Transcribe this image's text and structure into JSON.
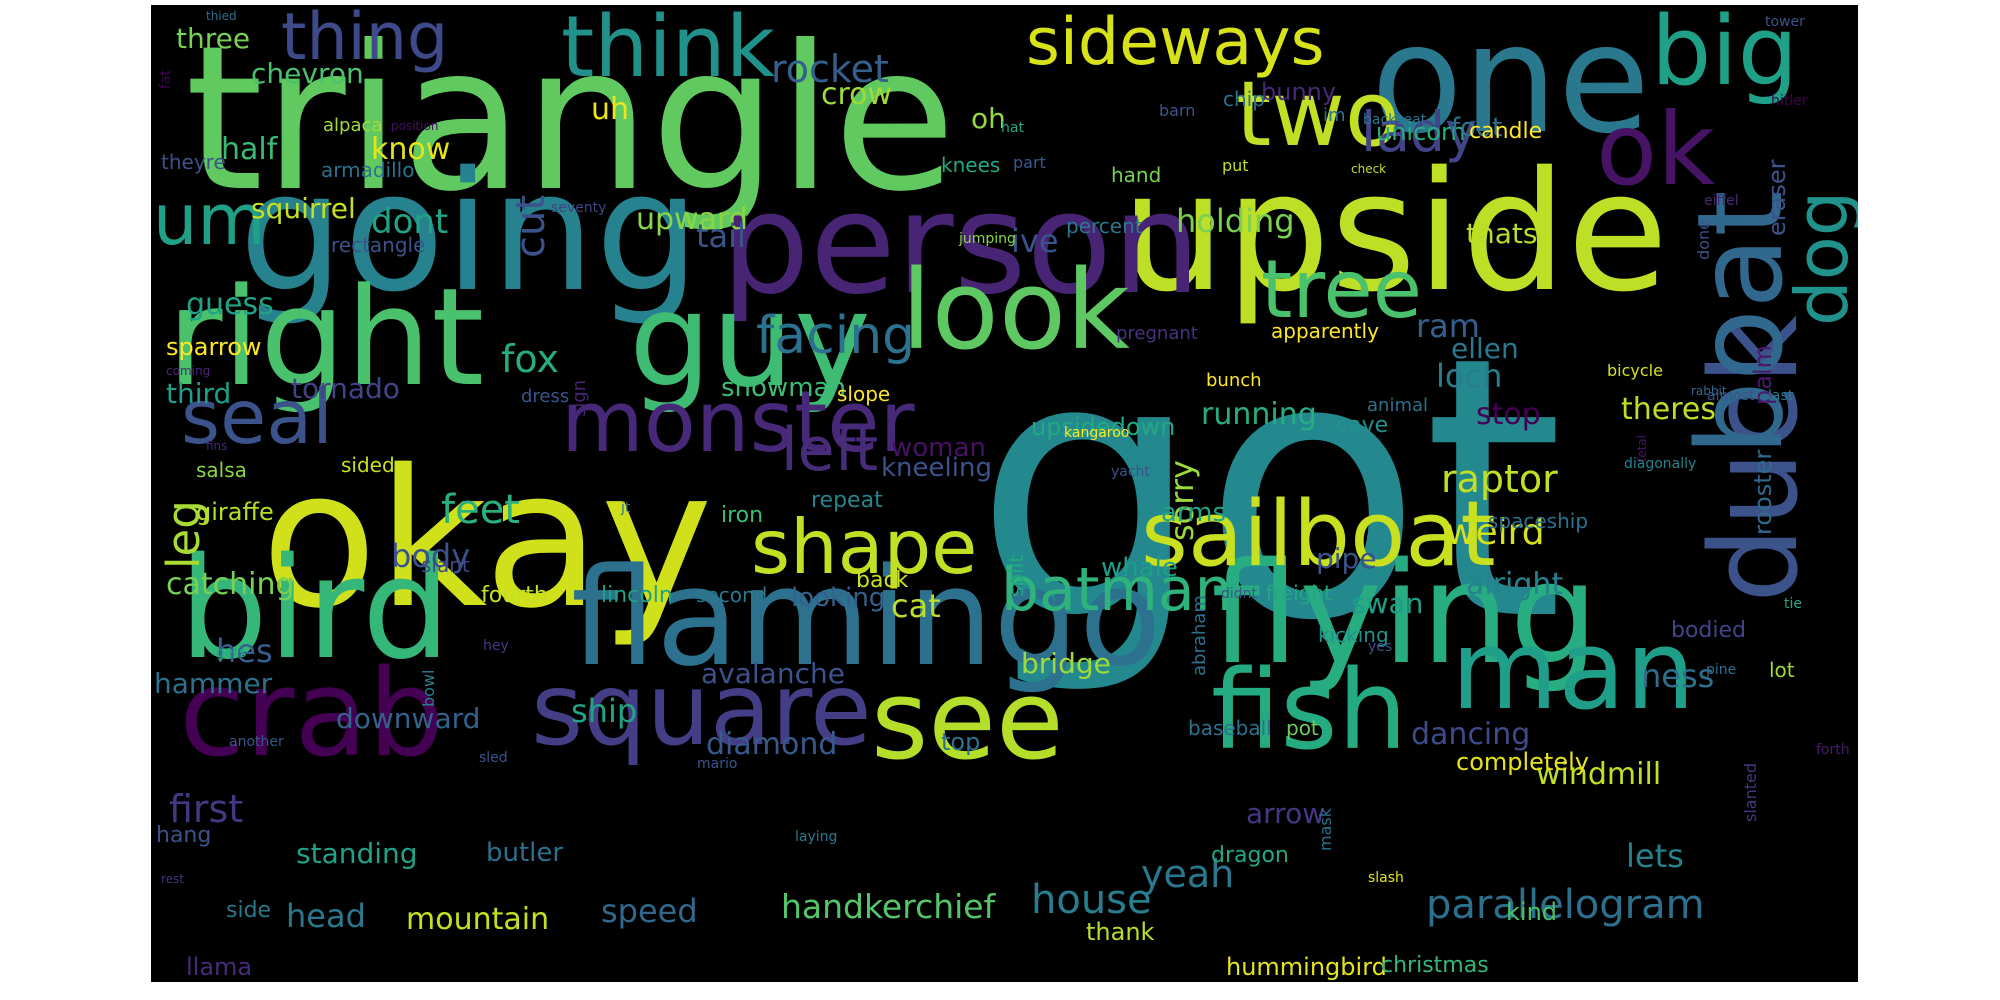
{
  "words": [
    {
      "text": "got",
      "color": "#23898e",
      "weight": 1.0
    },
    {
      "text": "triangle",
      "color": "#60ca60",
      "weight": 0.62
    },
    {
      "text": "okay",
      "color": "#d0e11c",
      "weight": 0.55
    },
    {
      "text": "going",
      "color": "#26828e",
      "weight": 0.5
    },
    {
      "text": "upside",
      "color": "#bddf26",
      "weight": 0.5
    },
    {
      "text": "one",
      "color": "#2a788e",
      "weight": 0.48
    },
    {
      "text": "person",
      "color": "#482475",
      "weight": 0.45
    },
    {
      "text": "flamingo",
      "color": "#2c728e",
      "weight": 0.45
    },
    {
      "text": "flying",
      "color": "#27ad81",
      "weight": 0.45
    },
    {
      "text": "bird",
      "color": "#35b779",
      "weight": 0.42
    },
    {
      "text": "right",
      "color": "#4ac16d",
      "weight": 0.42
    },
    {
      "text": "guy",
      "color": "#3fbc73",
      "weight": 0.42
    },
    {
      "text": "crab",
      "color": "#440154",
      "weight": 0.4
    },
    {
      "text": "duck",
      "color": "#3b528b",
      "weight": 0.38
    },
    {
      "text": "dog",
      "color": "#21918c",
      "weight": 0.38
    },
    {
      "text": "boat",
      "color": "#31688e",
      "weight": 0.38
    },
    {
      "text": "look",
      "color": "#5ec962",
      "weight": 0.36
    },
    {
      "text": "fish",
      "color": "#25ab82",
      "weight": 0.35
    },
    {
      "text": "man",
      "color": "#1f9e89",
      "weight": 0.35
    },
    {
      "text": "see",
      "color": "#b5de2b",
      "weight": 0.34
    },
    {
      "text": "square",
      "color": "#433e85",
      "weight": 0.33
    },
    {
      "text": "sailboat",
      "color": "#c8e020",
      "weight": 0.3
    },
    {
      "text": "ok",
      "color": "#471365",
      "weight": 0.3
    },
    {
      "text": "big",
      "color": "#1fa188",
      "weight": 0.3
    },
    {
      "text": "two",
      "color": "#c0df25",
      "weight": 0.28
    },
    {
      "text": "think",
      "color": "#21918c",
      "weight": 0.28
    },
    {
      "text": "thing",
      "color": "#3e4a89",
      "weight": 0.26
    },
    {
      "text": "monster",
      "color": "#482878",
      "weight": 0.26
    },
    {
      "text": "tree",
      "color": "#4ac16d",
      "weight": 0.24
    },
    {
      "text": "um",
      "color": "#1fa188",
      "weight": 0.24
    },
    {
      "text": "shape",
      "color": "#c2df23",
      "weight": 0.22
    },
    {
      "text": "batman",
      "color": "#2eb37c",
      "weight": 0.22
    },
    {
      "text": "seal",
      "color": "#3b528b",
      "weight": 0.22
    },
    {
      "text": "sideways",
      "color": "#d8e219",
      "weight": 0.2
    },
    {
      "text": "lady",
      "color": "#414487",
      "weight": 0.2
    },
    {
      "text": "left",
      "color": "#472c7a",
      "weight": 0.2
    },
    {
      "text": "facing",
      "color": "#2c728e",
      "weight": 0.18
    },
    {
      "text": "house",
      "color": "#287d8e",
      "weight": 0.16
    },
    {
      "text": "parallelogram",
      "color": "#2d708e",
      "weight": 0.16
    },
    {
      "text": "handkerchief",
      "color": "#54c568",
      "weight": 0.14
    },
    {
      "text": "mountain",
      "color": "#c5e021",
      "weight": 0.14
    },
    {
      "text": "yeah",
      "color": "#2a788e",
      "weight": 0.14
    },
    {
      "text": "rocket",
      "color": "#355f8d",
      "weight": 0.14
    },
    {
      "text": "leg",
      "color": "#a8db34",
      "weight": 0.14
    },
    {
      "text": "raptor",
      "color": "#c2df23",
      "weight": 0.13
    },
    {
      "text": "weird",
      "color": "#d5e21a",
      "weight": 0.13
    },
    {
      "text": "feet",
      "color": "#2ab07f",
      "weight": 0.13
    },
    {
      "text": "fox",
      "color": "#26ad81",
      "weight": 0.13
    },
    {
      "text": "cut",
      "color": "#3b528b",
      "weight": 0.13
    },
    {
      "text": "first",
      "color": "#453781",
      "weight": 0.13
    },
    {
      "text": "speed",
      "color": "#31688e",
      "weight": 0.12
    },
    {
      "text": "head",
      "color": "#2a788e",
      "weight": 0.12
    },
    {
      "text": "lets",
      "color": "#25838e",
      "weight": 0.12
    },
    {
      "text": "ness",
      "color": "#2d708e",
      "weight": 0.12
    },
    {
      "text": "crow",
      "color": "#a0da39",
      "weight": 0.12
    },
    {
      "text": "know",
      "color": "#e5e419",
      "weight": 0.12
    },
    {
      "text": "dont",
      "color": "#20a386",
      "weight": 0.12
    },
    {
      "text": "ive",
      "color": "#3b528b",
      "weight": 0.12
    },
    {
      "text": "holding",
      "color": "#7ad151",
      "weight": 0.12
    },
    {
      "text": "three",
      "color": "#77d153",
      "weight": 0.11
    },
    {
      "text": "chevron",
      "color": "#4ac16d",
      "weight": 0.11
    },
    {
      "text": "half",
      "color": "#3aba76",
      "weight": 0.11
    },
    {
      "text": "squirrel",
      "color": "#c5e021",
      "weight": 0.11
    },
    {
      "text": "upward",
      "color": "#8bd646",
      "weight": 0.11
    },
    {
      "text": "tail",
      "color": "#39568c",
      "weight": 0.11
    },
    {
      "text": "guess",
      "color": "#20a386",
      "weight": 0.11
    },
    {
      "text": "third",
      "color": "#1f9e89",
      "weight": 0.11
    },
    {
      "text": "tornado",
      "color": "#414487",
      "weight": 0.11
    },
    {
      "text": "body",
      "color": "#3b528b",
      "weight": 0.11
    },
    {
      "text": "catching",
      "color": "#77d153",
      "weight": 0.11
    },
    {
      "text": "hammer",
      "color": "#2c728e",
      "weight": 0.1
    },
    {
      "text": "hes",
      "color": "#355f8d",
      "weight": 0.11
    },
    {
      "text": "downward",
      "color": "#33638d",
      "weight": 0.1
    },
    {
      "text": "ship",
      "color": "#20a386",
      "weight": 0.11
    },
    {
      "text": "diamond",
      "color": "#38598c",
      "weight": 0.1
    },
    {
      "text": "avalanche",
      "color": "#3b528b",
      "weight": 0.1
    },
    {
      "text": "cat",
      "color": "#bddf26",
      "weight": 0.1
    },
    {
      "text": "loch",
      "color": "#287d8e",
      "weight": 0.1
    },
    {
      "text": "ram",
      "color": "#34608d",
      "weight": 0.1
    },
    {
      "text": "stop",
      "color": "#440154",
      "weight": 0.1
    },
    {
      "text": "theres",
      "color": "#bddf26",
      "weight": 0.1
    },
    {
      "text": "running",
      "color": "#27ad81",
      "weight": 0.1
    },
    {
      "text": "ellen",
      "color": "#2a788e",
      "weight": 0.09
    },
    {
      "text": "windmill",
      "color": "#c0df25",
      "weight": 0.09
    },
    {
      "text": "dancing",
      "color": "#3e4a89",
      "weight": 0.1
    },
    {
      "text": "sorry",
      "color": "#9bd93c",
      "weight": 0.09
    },
    {
      "text": "thats",
      "color": "#b8de29",
      "weight": 0.09
    },
    {
      "text": "alright",
      "color": "#26828e",
      "weight": 0.09
    },
    {
      "text": "swan",
      "color": "#1f9e89",
      "weight": 0.09
    },
    {
      "text": "standing",
      "color": "#1fa188",
      "weight": 0.09
    },
    {
      "text": "butler",
      "color": "#2d708e",
      "weight": 0.09
    },
    {
      "text": "snowman",
      "color": "#3dbc74",
      "weight": 0.09
    },
    {
      "text": "woman",
      "color": "#471164",
      "weight": 0.09
    },
    {
      "text": "kneeling",
      "color": "#3b528b",
      "weight": 0.09
    },
    {
      "text": "bridge",
      "color": "#a0da39",
      "weight": 0.09
    },
    {
      "text": "arrow",
      "color": "#453781",
      "weight": 0.09
    },
    {
      "text": "unicorn",
      "color": "#27ad81",
      "weight": 0.09
    },
    {
      "text": "bunny",
      "color": "#482878",
      "weight": 0.09
    },
    {
      "text": "foot",
      "color": "#2c728e",
      "weight": 0.09
    },
    {
      "text": "uh",
      "color": "#ece51b",
      "weight": 0.09
    },
    {
      "text": "oh",
      "color": "#95d840",
      "weight": 0.09
    },
    {
      "text": "knees",
      "color": "#22a884",
      "weight": 0.07
    },
    {
      "text": "pipe",
      "color": "#3b528b",
      "weight": 0.09
    },
    {
      "text": "whale",
      "color": "#1f9e89",
      "weight": 0.08
    },
    {
      "text": "arms",
      "color": "#20a386",
      "weight": 0.08
    },
    {
      "text": "looking",
      "color": "#34618d",
      "weight": 0.08
    },
    {
      "text": "upsidedown",
      "color": "#22a884",
      "weight": 0.08
    },
    {
      "text": "rooster",
      "color": "#31688e",
      "weight": 0.08
    },
    {
      "text": "completely",
      "color": "#e7e419",
      "weight": 0.08
    },
    {
      "text": "hummingbird",
      "color": "#e5e419",
      "weight": 0.08
    },
    {
      "text": "christmas",
      "color": "#35b779",
      "weight": 0.08
    },
    {
      "text": "kind",
      "color": "#4ac16d",
      "weight": 0.08
    },
    {
      "text": "thank",
      "color": "#b8de29",
      "weight": 0.08
    },
    {
      "text": "top",
      "color": "#2d708e",
      "weight": 0.08
    },
    {
      "text": "baseball",
      "color": "#2c728e",
      "weight": 0.07
    },
    {
      "text": "pot",
      "color": "#6ccd5a",
      "weight": 0.07
    },
    {
      "text": "giraffe",
      "color": "#b8de29",
      "weight": 0.07
    },
    {
      "text": "sparrow",
      "color": "#fde725",
      "weight": 0.07
    },
    {
      "text": "salsa",
      "color": "#8bd646",
      "weight": 0.07
    },
    {
      "text": "sided",
      "color": "#c8e020",
      "weight": 0.07
    },
    {
      "text": "fourth",
      "color": "#c5e021",
      "weight": 0.07
    },
    {
      "text": "lincoln",
      "color": "#1fa188",
      "weight": 0.07
    },
    {
      "text": "second",
      "color": "#2a788e",
      "weight": 0.07
    },
    {
      "text": "back",
      "color": "#c8e020",
      "weight": 0.07
    },
    {
      "text": "repeat",
      "color": "#24868e",
      "weight": 0.07
    },
    {
      "text": "iron",
      "color": "#3dbc74",
      "weight": 0.07
    },
    {
      "text": "slant",
      "color": "#3e4a89",
      "weight": 0.07
    },
    {
      "text": "llama",
      "color": "#472a7a",
      "weight": 0.07
    },
    {
      "text": "dragon",
      "color": "#22a884",
      "weight": 0.07
    },
    {
      "text": "bodied",
      "color": "#414487",
      "weight": 0.07
    },
    {
      "text": "lot",
      "color": "#9fda3a",
      "weight": 0.07
    },
    {
      "text": "eraser",
      "color": "#3b528b",
      "weight": 0.07
    },
    {
      "text": "palm",
      "color": "#481b6d",
      "weight": 0.07
    },
    {
      "text": "kicking",
      "color": "#21918c",
      "weight": 0.07
    },
    {
      "text": "cave",
      "color": "#21918c",
      "weight": 0.07
    },
    {
      "text": "candle",
      "color": "#fde725",
      "weight": 0.06
    },
    {
      "text": "chip",
      "color": "#2d708e",
      "weight": 0.07
    },
    {
      "text": "hand",
      "color": "#75d054",
      "weight": 0.06
    },
    {
      "text": "rectangle",
      "color": "#3b528b",
      "weight": 0.06
    },
    {
      "text": "percent",
      "color": "#2a788e",
      "weight": 0.06
    },
    {
      "text": "apparently",
      "color": "#fde725",
      "weight": 0.06
    },
    {
      "text": "spaceship",
      "color": "#2c728e",
      "weight": 0.06
    },
    {
      "text": "freight",
      "color": "#22a884",
      "weight": 0.06
    },
    {
      "text": "abraham",
      "color": "#2d708e",
      "weight": 0.06
    },
    {
      "text": "split",
      "color": "#22a884",
      "weight": 0.06
    },
    {
      "text": "theyre",
      "color": "#3b528b",
      "weight": 0.06
    },
    {
      "text": "armadillo",
      "color": "#2c728e",
      "weight": 0.06
    },
    {
      "text": "animal",
      "color": "#2d708e",
      "weight": 0.06
    },
    {
      "text": "pregnant",
      "color": "#46337f",
      "weight": 0.06
    },
    {
      "text": "dress",
      "color": "#39568c",
      "weight": 0.06
    },
    {
      "text": "slope",
      "color": "#fde725",
      "weight": 0.06
    },
    {
      "text": "bunch",
      "color": "#fde725",
      "weight": 0.06
    },
    {
      "text": "sign",
      "color": "#482475",
      "weight": 0.06
    },
    {
      "text": "alpaca",
      "color": "#a0da39",
      "weight": 0.06
    },
    {
      "text": "part",
      "color": "#38598c",
      "weight": 0.06
    },
    {
      "text": "barn",
      "color": "#3b528b",
      "weight": 0.05
    },
    {
      "text": "im",
      "color": "#2c728e",
      "weight": 0.05
    },
    {
      "text": "hat",
      "color": "#22a884",
      "weight": 0.05
    },
    {
      "text": "put",
      "color": "#bddf26",
      "weight": 0.05
    },
    {
      "text": "backseat",
      "color": "#2a788e",
      "weight": 0.05
    },
    {
      "text": "check",
      "color": "#bddf26",
      "weight": 0.05
    },
    {
      "text": "jumping",
      "color": "#8bd646",
      "weight": 0.05
    },
    {
      "text": "seventy",
      "color": "#414487",
      "weight": 0.05
    },
    {
      "text": "eiffel",
      "color": "#482878",
      "weight": 0.05
    },
    {
      "text": "hitler",
      "color": "#440154",
      "weight": 0.05
    },
    {
      "text": "tower",
      "color": "#3b528b",
      "weight": 0.05
    },
    {
      "text": "thied",
      "color": "#2d708e",
      "weight": 0.05
    },
    {
      "text": "fat",
      "color": "#440154",
      "weight": 0.05
    },
    {
      "text": "position",
      "color": "#471164",
      "weight": 0.05
    },
    {
      "text": "done",
      "color": "#3b528b",
      "weight": 0.05
    },
    {
      "text": "bicycle",
      "color": "#d8e219",
      "weight": 0.05
    },
    {
      "text": "rabbit",
      "color": "#31688e",
      "weight": 0.05
    },
    {
      "text": "almost",
      "color": "#3b528b",
      "weight": 0.05
    },
    {
      "text": "last",
      "color": "#2a788e",
      "weight": 0.05
    },
    {
      "text": "coming",
      "color": "#482878",
      "weight": 0.05
    },
    {
      "text": "fins",
      "color": "#482878",
      "weight": 0.05
    },
    {
      "text": "kangaroo",
      "color": "#fde725",
      "weight": 0.05
    },
    {
      "text": "fetal",
      "color": "#481769",
      "weight": 0.05
    },
    {
      "text": "diagonally",
      "color": "#25838e",
      "weight": 0.05
    },
    {
      "text": "yacht",
      "color": "#3b528b",
      "weight": 0.05
    },
    {
      "text": "jt",
      "color": "#2d708e",
      "weight": 0.05
    },
    {
      "text": "didnt",
      "color": "#3b528b",
      "weight": 0.05
    },
    {
      "text": "tie",
      "color": "#22a884",
      "weight": 0.05
    },
    {
      "text": "hey",
      "color": "#443983",
      "weight": 0.05
    },
    {
      "text": "gets",
      "color": "#22a884",
      "weight": 0.05
    },
    {
      "text": "bowl",
      "color": "#26828e",
      "weight": 0.05
    },
    {
      "text": "yes",
      "color": "#3b528b",
      "weight": 0.05
    },
    {
      "text": "pine",
      "color": "#2d708e",
      "weight": 0.05
    },
    {
      "text": "another",
      "color": "#38598c",
      "weight": 0.05
    },
    {
      "text": "sled",
      "color": "#3b528b",
      "weight": 0.05
    },
    {
      "text": "mario",
      "color": "#39568c",
      "weight": 0.05
    },
    {
      "text": "forth",
      "color": "#481c6e",
      "weight": 0.05
    },
    {
      "text": "slanted",
      "color": "#443983",
      "weight": 0.05
    },
    {
      "text": "mask",
      "color": "#2c728e",
      "weight": 0.05
    },
    {
      "text": "laying",
      "color": "#2a788e",
      "weight": 0.05
    },
    {
      "text": "slash",
      "color": "#e5e419",
      "weight": 0.05
    },
    {
      "text": "rest",
      "color": "#46337f",
      "weight": 0.05
    },
    {
      "text": "hang",
      "color": "#3b528b",
      "weight": 0.06
    },
    {
      "text": "side",
      "color": "#2a788e",
      "weight": 0.06
    }
  ]
}
